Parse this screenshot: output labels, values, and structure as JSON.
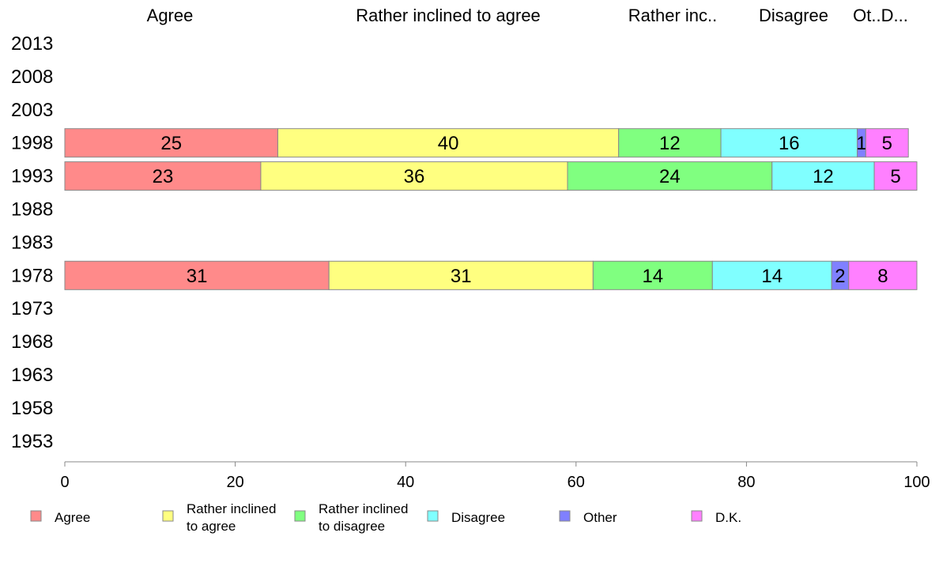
{
  "chart_data": {
    "type": "bar",
    "orientation": "horizontal",
    "stacked": true,
    "years": [
      "2013",
      "2008",
      "2003",
      "1998",
      "1993",
      "1988",
      "1983",
      "1978",
      "1973",
      "1968",
      "1963",
      "1958",
      "1953"
    ],
    "category_headers": [
      "Agree",
      "Rather inclined to agree",
      "Rather inc..",
      "Disagree",
      "Ot..D..."
    ],
    "series": [
      {
        "name": "Agree",
        "legend": [
          "Agree"
        ],
        "color": "#ff8a8a",
        "values": {
          "1998": 25,
          "1993": 23,
          "1978": 31
        }
      },
      {
        "name": "Rather inclined to agree",
        "legend": [
          "Rather inclined",
          "to agree"
        ],
        "color": "#ffff80",
        "values": {
          "1998": 40,
          "1993": 36,
          "1978": 31
        }
      },
      {
        "name": "Rather inclined to disagree",
        "legend": [
          "Rather inclined",
          "to disagree"
        ],
        "color": "#80ff80",
        "values": {
          "1998": 12,
          "1993": 24,
          "1978": 14
        }
      },
      {
        "name": "Disagree",
        "legend": [
          "Disagree"
        ],
        "color": "#80ffff",
        "values": {
          "1998": 16,
          "1993": 12,
          "1978": 14
        }
      },
      {
        "name": "Other",
        "legend": [
          "Other"
        ],
        "color": "#8080ff",
        "values": {
          "1998": 1,
          "1993": 0,
          "1978": 2
        }
      },
      {
        "name": "D.K.",
        "legend": [
          "D.K."
        ],
        "color": "#ff80ff",
        "values": {
          "1998": 5,
          "1993": 5,
          "1978": 8
        }
      }
    ],
    "xlim": [
      0,
      100
    ],
    "xticks": [
      0,
      20,
      40,
      60,
      80,
      100
    ],
    "grid": false,
    "legend_position": "bottom"
  }
}
